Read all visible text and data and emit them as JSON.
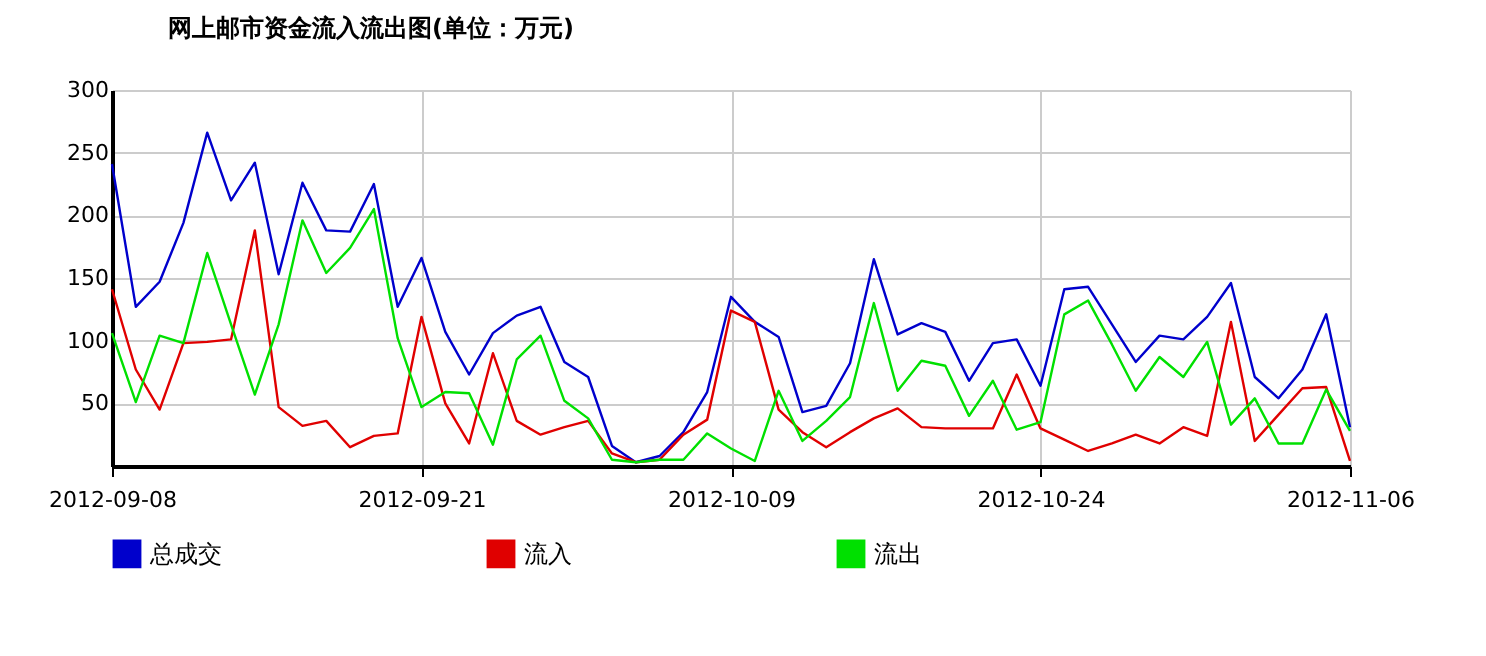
{
  "chart_data": {
    "type": "line",
    "title": "网上邮市资金流入流出图(单位：万元)",
    "categories": [
      "2012-09-08",
      null,
      null,
      null,
      null,
      null,
      null,
      null,
      null,
      null,
      null,
      null,
      null,
      "2012-09-21",
      null,
      null,
      null,
      null,
      null,
      null,
      null,
      null,
      null,
      null,
      null,
      null,
      "2012-10-09",
      null,
      null,
      null,
      null,
      null,
      null,
      null,
      null,
      null,
      null,
      null,
      null,
      "2012-10-24",
      null,
      null,
      null,
      null,
      null,
      null,
      null,
      null,
      null,
      null,
      null,
      null,
      "2012-11-06"
    ],
    "ylim": [
      0,
      300
    ],
    "yticks": [
      50,
      100,
      150,
      200,
      250,
      300
    ],
    "grid": true,
    "legend": "bottom",
    "series": [
      {
        "name": "总成交",
        "color": "#0000cc",
        "values": [
          241,
          127,
          147,
          194,
          266,
          212,
          242,
          153,
          226,
          188,
          187,
          225,
          127,
          166,
          107,
          73,
          106,
          120,
          127,
          83,
          71,
          16,
          3,
          8,
          27,
          59,
          135,
          115,
          103,
          43,
          48,
          82,
          165,
          105,
          114,
          107,
          68,
          98,
          101,
          64,
          141,
          143,
          113,
          83,
          104,
          101,
          119,
          146,
          71,
          54,
          77,
          121,
          31
        ]
      },
      {
        "name": "流入",
        "color": "#e00000",
        "values": [
          141,
          77,
          45,
          98,
          99,
          101,
          188,
          47,
          32,
          36,
          15,
          24,
          26,
          119,
          50,
          18,
          90,
          36,
          25,
          31,
          36,
          10,
          3,
          5,
          25,
          37,
          124,
          115,
          45,
          27,
          15,
          27,
          38,
          46,
          31,
          30,
          30,
          30,
          73,
          30,
          21,
          12,
          18,
          25,
          18,
          31,
          24,
          115,
          20,
          41,
          62,
          63,
          4
        ]
      },
      {
        "name": "流出",
        "color": "#00e000",
        "values": [
          106,
          51,
          104,
          98,
          170,
          113,
          57,
          113,
          196,
          154,
          174,
          205,
          102,
          47,
          59,
          58,
          17,
          85,
          104,
          52,
          38,
          5,
          3,
          5,
          5,
          26,
          14,
          4,
          60,
          20,
          36,
          55,
          130,
          60,
          84,
          80,
          40,
          68,
          29,
          35,
          121,
          132,
          97,
          60,
          87,
          71,
          99,
          33,
          54,
          18,
          18,
          61,
          28
        ]
      }
    ]
  }
}
